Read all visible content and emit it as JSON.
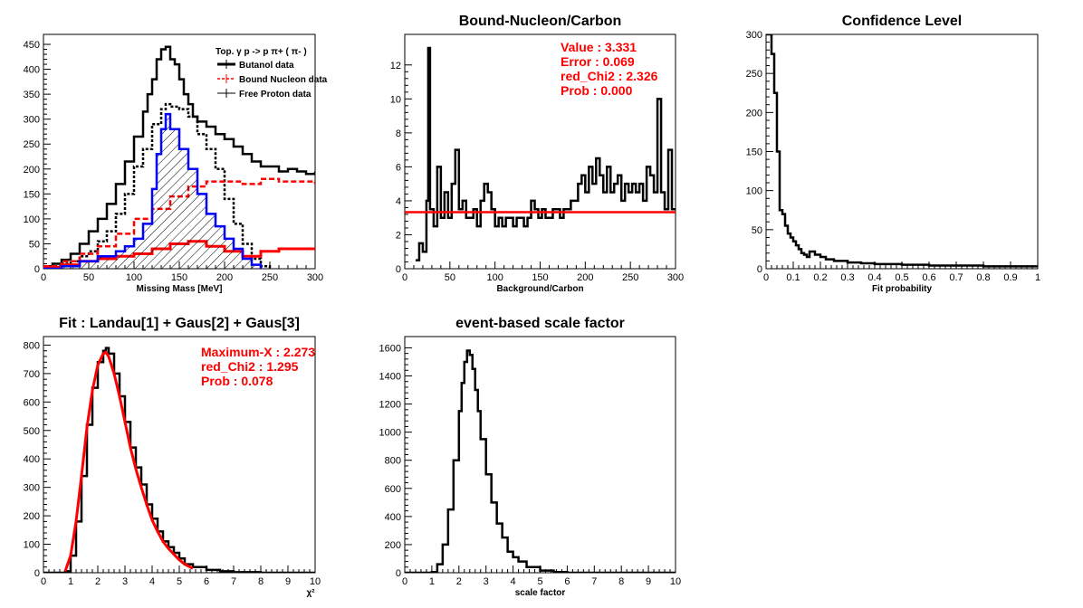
{
  "chart_data": [
    {
      "type": "line",
      "title": "",
      "xlabel": "Missing Mass [MeV]",
      "ylabel": "",
      "xlim": [
        0,
        300
      ],
      "ylim": [
        0,
        470
      ],
      "xticks": [
        "0",
        "50",
        "100",
        "150",
        "200",
        "250",
        "300"
      ],
      "yticks": [
        "0",
        "50",
        "100",
        "150",
        "200",
        "250",
        "300",
        "350",
        "400",
        "450"
      ],
      "legend": {
        "title": "Top.  γ p -> p  π+ ( π- )",
        "placement": "top-right",
        "entries": [
          "Butanol data",
          "Bound Nucleon data",
          "Free Proton data"
        ]
      },
      "series": [
        {
          "name": "Butanol data",
          "color": "#000000",
          "x": [
            0,
            10,
            20,
            30,
            40,
            50,
            60,
            70,
            80,
            90,
            100,
            110,
            115,
            120,
            125,
            130,
            135,
            140,
            145,
            150,
            155,
            160,
            165,
            170,
            180,
            190,
            200,
            210,
            220,
            230,
            240,
            250,
            260,
            270,
            280,
            290,
            300
          ],
          "y": [
            5,
            10,
            18,
            30,
            50,
            75,
            100,
            130,
            170,
            215,
            265,
            315,
            350,
            380,
            420,
            440,
            445,
            420,
            410,
            380,
            350,
            330,
            305,
            295,
            285,
            270,
            260,
            245,
            230,
            215,
            205,
            205,
            195,
            200,
            195,
            190,
            195
          ]
        },
        {
          "name": "Free Proton data",
          "color": "#000000",
          "x": [
            0,
            10,
            20,
            30,
            40,
            50,
            60,
            70,
            80,
            90,
            100,
            110,
            120,
            130,
            135,
            140,
            150,
            160,
            170,
            180,
            190,
            200,
            210,
            220,
            230,
            240,
            250
          ],
          "y": [
            0,
            5,
            10,
            15,
            25,
            35,
            55,
            75,
            110,
            150,
            205,
            240,
            290,
            320,
            330,
            325,
            320,
            305,
            270,
            240,
            200,
            140,
            90,
            50,
            20,
            5,
            0
          ]
        },
        {
          "name": "Bound Nucleon data",
          "color": "#ff0000",
          "x": [
            0,
            20,
            40,
            60,
            80,
            100,
            120,
            140,
            160,
            180,
            200,
            220,
            240,
            260,
            280,
            300
          ],
          "y": [
            5,
            15,
            30,
            45,
            70,
            100,
            120,
            145,
            165,
            175,
            175,
            170,
            180,
            175,
            175,
            170
          ]
        },
        {
          "name": "",
          "color": "#ff0000",
          "x": [
            0,
            20,
            40,
            60,
            80,
            100,
            120,
            140,
            160,
            180,
            200,
            220,
            240,
            260,
            280,
            300
          ],
          "y": [
            3,
            8,
            15,
            20,
            25,
            30,
            40,
            50,
            55,
            45,
            35,
            25,
            35,
            40,
            40,
            40
          ]
        },
        {
          "name": "",
          "color": "#0000ff",
          "x": [
            0,
            20,
            40,
            60,
            70,
            80,
            90,
            100,
            110,
            120,
            125,
            130,
            135,
            140,
            150,
            160,
            170,
            180,
            190,
            200,
            210,
            220,
            230,
            240
          ],
          "y": [
            0,
            5,
            15,
            25,
            25,
            35,
            45,
            60,
            90,
            160,
            230,
            280,
            310,
            280,
            240,
            200,
            150,
            110,
            85,
            60,
            40,
            20,
            8,
            0
          ]
        }
      ]
    },
    {
      "type": "line",
      "title": "Bound-Nucleon/Carbon",
      "xlabel": "Background/Carbon",
      "ylabel": "",
      "xlim": [
        0,
        300
      ],
      "ylim": [
        0,
        13.8
      ],
      "xticks": [
        "0",
        "50",
        "100",
        "150",
        "200",
        "250",
        "300"
      ],
      "yticks": [
        "0",
        "2",
        "4",
        "6",
        "8",
        "10",
        "12"
      ],
      "annotations": [
        "Value : 3.331",
        "Error : 0.069",
        "red_Chi2 : 2.326",
        "Prob : 0.000"
      ],
      "fit_value": 3.331,
      "series": [
        {
          "name": "",
          "color": "#000000",
          "x": [
            12,
            16,
            20,
            24,
            26,
            28,
            32,
            36,
            40,
            44,
            48,
            52,
            56,
            60,
            64,
            68,
            72,
            76,
            80,
            84,
            88,
            92,
            96,
            100,
            104,
            108,
            112,
            116,
            120,
            124,
            128,
            132,
            136,
            140,
            144,
            148,
            152,
            156,
            160,
            164,
            168,
            172,
            176,
            180,
            184,
            188,
            192,
            196,
            200,
            204,
            208,
            212,
            216,
            220,
            224,
            228,
            232,
            236,
            240,
            244,
            248,
            252,
            256,
            260,
            264,
            268,
            272,
            276,
            280,
            284,
            288,
            292,
            296,
            300
          ],
          "y": [
            0.5,
            1.5,
            1.0,
            4.0,
            13.0,
            3.5,
            2.5,
            6.0,
            3.0,
            4.5,
            3.0,
            5.0,
            7.0,
            3.5,
            4.0,
            3.0,
            3.0,
            3.5,
            2.5,
            4.0,
            5.0,
            4.5,
            3.5,
            2.5,
            3.0,
            2.5,
            3.0,
            3.0,
            2.5,
            3.0,
            3.0,
            2.5,
            3.0,
            4.0,
            3.5,
            3.0,
            3.5,
            3.0,
            3.0,
            3.5,
            3.5,
            3.0,
            3.5,
            3.5,
            4.0,
            4.0,
            5.0,
            5.5,
            4.5,
            6.0,
            5.0,
            6.5,
            5.5,
            4.5,
            6.0,
            4.5,
            5.0,
            5.5,
            4.0,
            5.0,
            4.5,
            5.0,
            4.5,
            5.0,
            4.0,
            6.0,
            5.5,
            4.5,
            10.0,
            4.5,
            3.5,
            7.0,
            3.5,
            3.5
          ]
        }
      ]
    },
    {
      "type": "line",
      "title": "Confidence Level",
      "xlabel": "Fit probability",
      "ylabel": "",
      "xlim": [
        0,
        1
      ],
      "ylim": [
        0,
        300
      ],
      "xticks": [
        "0",
        "0.1",
        "0.2",
        "0.3",
        "0.4",
        "0.5",
        "0.6",
        "0.7",
        "0.8",
        "0.9",
        "1"
      ],
      "yticks": [
        "0",
        "50",
        "100",
        "150",
        "200",
        "250",
        "300"
      ],
      "series": [
        {
          "name": "",
          "color": "#000000",
          "x": [
            0,
            0.01,
            0.02,
            0.03,
            0.04,
            0.05,
            0.06,
            0.07,
            0.08,
            0.09,
            0.1,
            0.11,
            0.12,
            0.13,
            0.14,
            0.15,
            0.16,
            0.18,
            0.2,
            0.22,
            0.25,
            0.3,
            0.35,
            0.4,
            0.5,
            0.6,
            0.7,
            0.8,
            0.9,
            1.0
          ],
          "y": [
            300,
            300,
            275,
            225,
            150,
            75,
            70,
            55,
            45,
            40,
            35,
            30,
            25,
            20,
            18,
            15,
            22,
            18,
            15,
            12,
            10,
            8,
            7,
            6,
            5,
            4,
            4,
            3,
            3,
            2
          ]
        }
      ]
    },
    {
      "type": "line",
      "title": "Fit : Landau[1] + Gaus[2] + Gaus[3]",
      "xlabel": "χ²",
      "ylabel": "",
      "xlim": [
        0,
        10
      ],
      "ylim": [
        0,
        830
      ],
      "xticks": [
        "0",
        "1",
        "2",
        "3",
        "4",
        "5",
        "6",
        "7",
        "8",
        "9",
        "10"
      ],
      "yticks": [
        "0",
        "100",
        "200",
        "300",
        "400",
        "500",
        "600",
        "700",
        "800"
      ],
      "annotations": [
        "Maximum-X : 2.273",
        "red_Chi2 : 1.295",
        "Prob : 0.078"
      ],
      "series": [
        {
          "name": "",
          "color": "#000000",
          "x": [
            0,
            0.5,
            0.8,
            1.0,
            1.2,
            1.4,
            1.6,
            1.8,
            2.0,
            2.2,
            2.3,
            2.4,
            2.6,
            2.8,
            3.0,
            3.2,
            3.4,
            3.6,
            3.8,
            4.0,
            4.2,
            4.4,
            4.6,
            4.8,
            5.0,
            5.2,
            5.5,
            6.0,
            6.5,
            7.0,
            8.0,
            10.0
          ],
          "y": [
            0,
            0,
            5,
            60,
            180,
            340,
            520,
            650,
            740,
            780,
            790,
            770,
            700,
            620,
            530,
            440,
            370,
            310,
            240,
            190,
            145,
            110,
            90,
            70,
            50,
            30,
            20,
            10,
            5,
            2,
            0,
            0
          ]
        },
        {
          "name": "",
          "color": "#ff0000",
          "x": [
            0.8,
            1.0,
            1.2,
            1.4,
            1.6,
            1.8,
            2.0,
            2.2,
            2.3,
            2.4,
            2.6,
            2.8,
            3.0,
            3.2,
            3.4,
            3.6,
            3.8,
            4.0,
            4.2,
            4.4,
            4.6,
            4.8,
            5.0,
            5.2,
            5.5
          ],
          "y": [
            5,
            60,
            180,
            340,
            510,
            640,
            730,
            770,
            775,
            760,
            700,
            620,
            530,
            440,
            365,
            300,
            240,
            185,
            145,
            110,
            85,
            65,
            45,
            30,
            15
          ]
        }
      ]
    },
    {
      "type": "line",
      "title": "event-based scale factor",
      "xlabel": "scale factor",
      "ylabel": "",
      "xlim": [
        0,
        10
      ],
      "ylim": [
        0,
        1680
      ],
      "xticks": [
        "0",
        "1",
        "2",
        "3",
        "4",
        "5",
        "6",
        "7",
        "8",
        "9",
        "10"
      ],
      "yticks": [
        "0",
        "200",
        "400",
        "600",
        "800",
        "1000",
        "1200",
        "1400",
        "1600"
      ],
      "series": [
        {
          "name": "",
          "color": "#000000",
          "x": [
            0,
            1.0,
            1.2,
            1.4,
            1.6,
            1.8,
            2.0,
            2.1,
            2.2,
            2.3,
            2.4,
            2.5,
            2.6,
            2.7,
            2.8,
            3.0,
            3.2,
            3.4,
            3.6,
            3.8,
            4.0,
            4.2,
            4.5,
            5.0,
            5.5,
            6.0,
            10.0
          ],
          "y": [
            0,
            5,
            60,
            200,
            450,
            800,
            1150,
            1350,
            1500,
            1580,
            1550,
            1450,
            1300,
            1150,
            950,
            700,
            500,
            350,
            250,
            150,
            110,
            80,
            40,
            15,
            5,
            0,
            0
          ]
        }
      ]
    }
  ]
}
